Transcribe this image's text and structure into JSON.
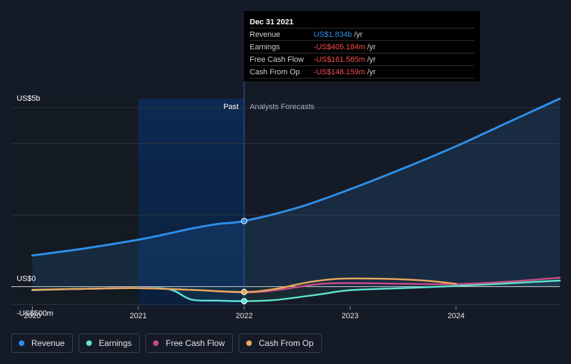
{
  "chart_data": {
    "type": "line",
    "y_axis": {
      "unit_label_top": "US$5b",
      "unit_label_zero": "US$0",
      "unit_label_bottom": "-US$500m",
      "ylim": [
        -0.55,
        5.25
      ]
    },
    "x_axis": {
      "ticks": [
        "2020",
        "2021",
        "2022",
        "2023",
        "2024"
      ],
      "xlim": [
        2019.8,
        2024.98
      ]
    },
    "regions": {
      "past_label": "Past",
      "forecast_label": "Analysts Forecasts",
      "divider_x": 2022.0,
      "past_highlight_start": 2021.0
    },
    "series": [
      {
        "name": "Revenue",
        "color": "#2e8fe8",
        "points": [
          [
            2020.0,
            0.87
          ],
          [
            2020.5,
            1.07
          ],
          [
            2021.0,
            1.31
          ],
          [
            2021.25,
            1.46
          ],
          [
            2021.5,
            1.62
          ],
          [
            2021.75,
            1.75
          ],
          [
            2022.0,
            1.834
          ],
          [
            2022.5,
            2.2
          ],
          [
            2023.0,
            2.72
          ],
          [
            2023.5,
            3.3
          ],
          [
            2024.0,
            3.92
          ],
          [
            2024.5,
            4.6
          ],
          [
            2024.98,
            5.25
          ]
        ]
      },
      {
        "name": "Earnings",
        "color": "#5ee3cf",
        "points": [
          [
            2020.0,
            -0.1
          ],
          [
            2020.5,
            -0.06
          ],
          [
            2021.0,
            -0.04
          ],
          [
            2021.3,
            -0.08
          ],
          [
            2021.5,
            -0.36
          ],
          [
            2021.75,
            -0.39
          ],
          [
            2022.0,
            -0.405
          ],
          [
            2022.3,
            -0.37
          ],
          [
            2022.7,
            -0.22
          ],
          [
            2023.0,
            -0.1
          ],
          [
            2023.5,
            -0.04
          ],
          [
            2024.0,
            0.02
          ],
          [
            2024.98,
            0.17
          ]
        ]
      },
      {
        "name": "Free Cash Flow",
        "color": "#c64d85",
        "points": [
          [
            2020.0,
            -0.09
          ],
          [
            2020.5,
            -0.06
          ],
          [
            2021.0,
            -0.04
          ],
          [
            2021.5,
            -0.09
          ],
          [
            2022.0,
            -0.162
          ],
          [
            2022.3,
            -0.1
          ],
          [
            2022.7,
            0.07
          ],
          [
            2023.0,
            0.1
          ],
          [
            2023.5,
            0.08
          ],
          [
            2024.0,
            0.07
          ],
          [
            2024.5,
            0.14
          ],
          [
            2024.98,
            0.25
          ]
        ]
      },
      {
        "name": "Cash From Op",
        "color": "#e6a85e",
        "points": [
          [
            2020.0,
            -0.09
          ],
          [
            2020.5,
            -0.06
          ],
          [
            2021.0,
            -0.04
          ],
          [
            2021.5,
            -0.09
          ],
          [
            2022.0,
            -0.148
          ],
          [
            2022.3,
            -0.06
          ],
          [
            2022.6,
            0.12
          ],
          [
            2022.9,
            0.22
          ],
          [
            2023.3,
            0.22
          ],
          [
            2023.7,
            0.17
          ],
          [
            2024.0,
            0.08
          ]
        ]
      }
    ],
    "highlight_x": 2022.0
  },
  "tooltip": {
    "date": "Dec 31 2021",
    "rows": [
      {
        "label": "Revenue",
        "value": "US$1.834b",
        "unit": "/yr",
        "color": "#2e8fe8"
      },
      {
        "label": "Earnings",
        "value": "-US$405.184m",
        "unit": "/yr",
        "color": "#ff4d4d"
      },
      {
        "label": "Free Cash Flow",
        "value": "-US$161.585m",
        "unit": "/yr",
        "color": "#ff4d4d"
      },
      {
        "label": "Cash From Op",
        "value": "-US$148.159m",
        "unit": "/yr",
        "color": "#ff4d4d"
      }
    ]
  },
  "legend": [
    {
      "label": "Revenue",
      "color": "#2e8fe8"
    },
    {
      "label": "Earnings",
      "color": "#5ee3cf"
    },
    {
      "label": "Free Cash Flow",
      "color": "#c64d85"
    },
    {
      "label": "Cash From Op",
      "color": "#e6a85e"
    }
  ]
}
